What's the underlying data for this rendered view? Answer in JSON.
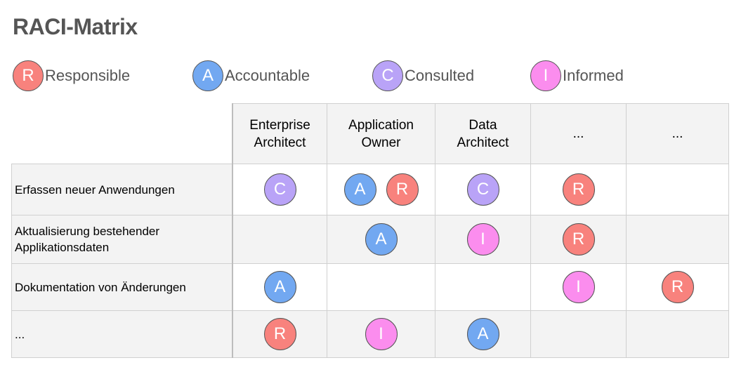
{
  "title": "RACI-Matrix",
  "legend": [
    {
      "letter": "R",
      "label": "Responsible",
      "color": "#f8827d"
    },
    {
      "letter": "A",
      "label": "Accountable",
      "color": "#72a8f1"
    },
    {
      "letter": "C",
      "label": "Consulted",
      "color": "#b9a3f7"
    },
    {
      "letter": "I",
      "label": "Informed",
      "color": "#fb8dee"
    }
  ],
  "columns": [
    "Enterprise Architect",
    "Application Owner",
    "Data Architect",
    "...",
    "..."
  ],
  "rows": [
    {
      "task": "Erfassen neuer Anwendungen",
      "cells": [
        [
          "C"
        ],
        [
          "A",
          "R"
        ],
        [
          "C"
        ],
        [
          "R"
        ],
        []
      ]
    },
    {
      "task": "Aktualisierung bestehender Applikationsdaten",
      "cells": [
        [],
        [
          "A"
        ],
        [
          "I"
        ],
        [
          "R"
        ],
        []
      ]
    },
    {
      "task": "Dokumentation von Änderungen",
      "cells": [
        [
          "A"
        ],
        [],
        [],
        [
          "I"
        ],
        [
          "R"
        ]
      ]
    },
    {
      "task": "...",
      "cells": [
        [
          "R"
        ],
        [
          "I"
        ],
        [
          "A"
        ],
        [],
        []
      ]
    }
  ]
}
